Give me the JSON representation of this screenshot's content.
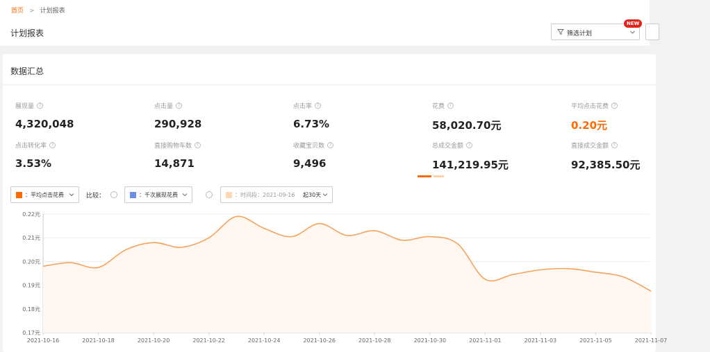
{
  "breadcrumb": {
    "home": "首页",
    "separator": ">",
    "current": "计划报表"
  },
  "page_title": "计划报表",
  "filter": {
    "label": "筛选计划",
    "badge": "NEW"
  },
  "summary": {
    "title": "数据汇总",
    "metrics": [
      {
        "label": "展现量",
        "value": "4,320,048"
      },
      {
        "label": "点击量",
        "value": "290,928"
      },
      {
        "label": "点击率",
        "value": "6.73%"
      },
      {
        "label": "花费",
        "value": "58,020.70元"
      },
      {
        "label": "平均点击花费",
        "value": "0.20元"
      },
      {
        "label": "点击转化率",
        "value": "3.53%"
      },
      {
        "label": "直接购物车数",
        "value": "14,871"
      },
      {
        "label": "收藏宝贝数",
        "value": "9,496"
      },
      {
        "label": "总成交金额",
        "value": "141,219.95元"
      },
      {
        "label": "直接成交金额",
        "value": "92,385.50元"
      }
    ],
    "highlight_color": "#ff6a00"
  },
  "controls": {
    "metric_select": "：平均点击花费",
    "compare_label": "比较：",
    "compare_select": "：千次展现花费",
    "period_select": "：时间段：2021-09-16",
    "period_span": "起30天",
    "colors": {
      "primary": "#ff6a00",
      "compare": "#6b8de3",
      "period": "#ffd7b5"
    }
  },
  "chart_data": {
    "type": "area",
    "x": [
      "2021-10-16",
      "2021-10-17",
      "2021-10-18",
      "2021-10-19",
      "2021-10-20",
      "2021-10-21",
      "2021-10-22",
      "2021-10-23",
      "2021-10-24",
      "2021-10-25",
      "2021-10-26",
      "2021-10-27",
      "2021-10-28",
      "2021-10-29",
      "2021-10-30",
      "2021-10-31",
      "2021-11-01",
      "2021-11-02",
      "2021-11-03",
      "2021-11-04",
      "2021-11-05",
      "2021-11-06",
      "2021-11-07"
    ],
    "series": [
      {
        "values": [
          0.198,
          0.1995,
          0.1975,
          0.205,
          0.208,
          0.206,
          0.21,
          0.219,
          0.214,
          0.2105,
          0.216,
          0.211,
          0.213,
          0.209,
          0.2105,
          0.2075,
          0.1925,
          0.1945,
          0.1965,
          0.197,
          0.1955,
          0.1935,
          0.1875
        ]
      }
    ],
    "x_ticks": [
      "2021-10-16",
      "2021-10-18",
      "2021-10-20",
      "2021-10-22",
      "2021-10-24",
      "2021-10-26",
      "2021-10-28",
      "2021-10-30",
      "2021-11-01",
      "2021-11-03",
      "2021-11-05",
      "2021-11-07"
    ],
    "y_ticks": [
      "0.22元",
      "0.21元",
      "0.20元",
      "0.19元",
      "0.18元",
      "0.17元"
    ],
    "ylim": [
      0.17,
      0.22
    ],
    "grid": true,
    "line_color": "#f5a25d",
    "fill_color": "#fff7f0"
  }
}
